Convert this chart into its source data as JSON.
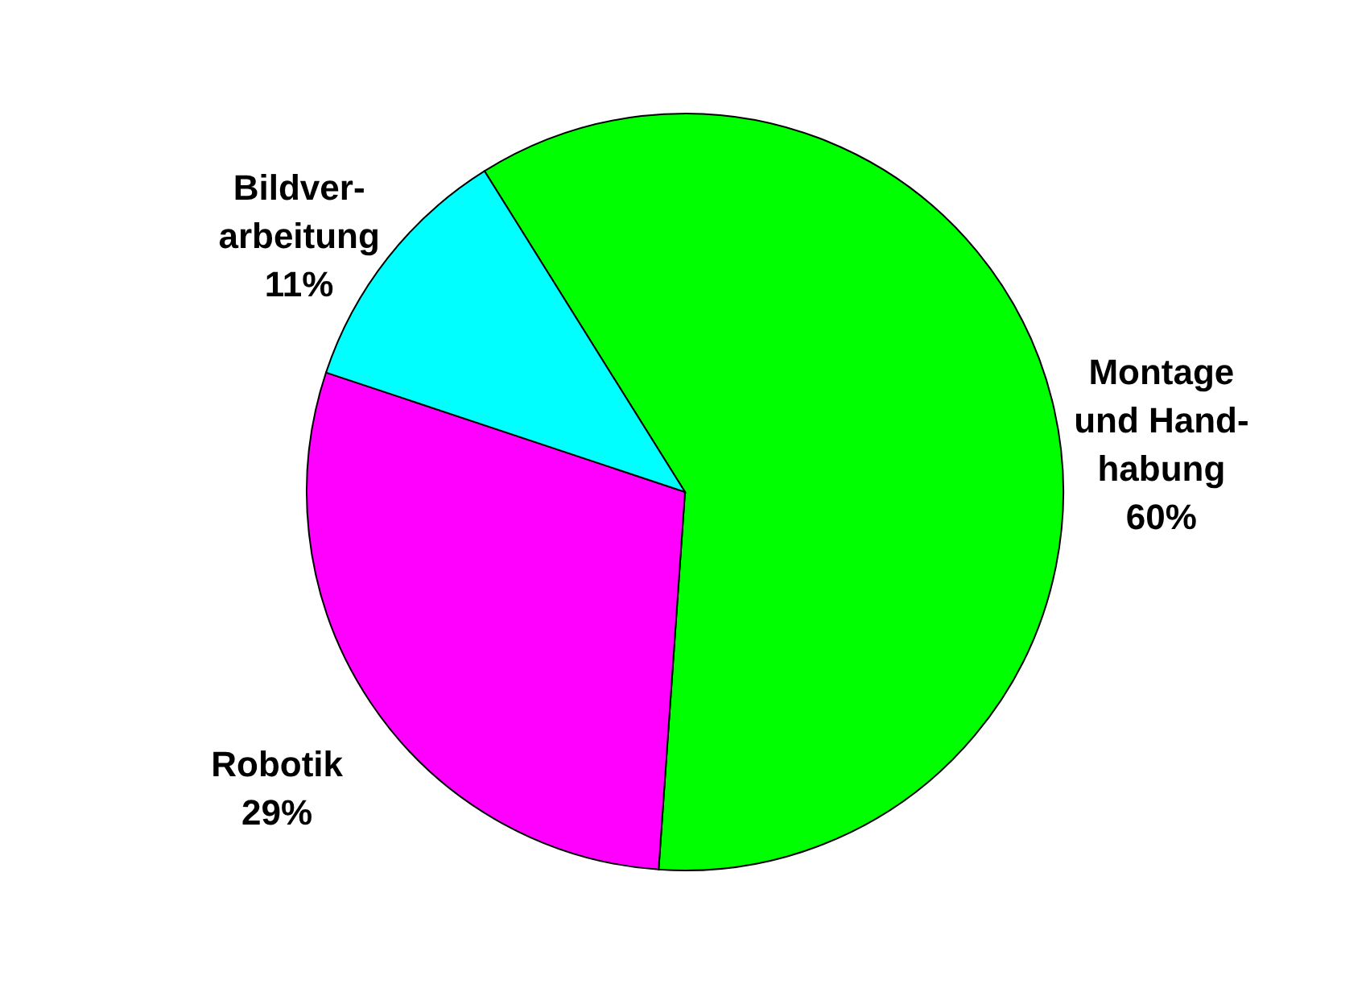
{
  "chart_data": {
    "type": "pie",
    "categories": [
      "Montage und Hand-habung",
      "Robotik",
      "Bildver-arbeitung"
    ],
    "values": [
      60,
      29,
      11
    ],
    "value_labels": [
      "60%",
      "29%",
      "11%"
    ],
    "colors": [
      "#00ff00",
      "#ff00ff",
      "#00ffff"
    ]
  }
}
